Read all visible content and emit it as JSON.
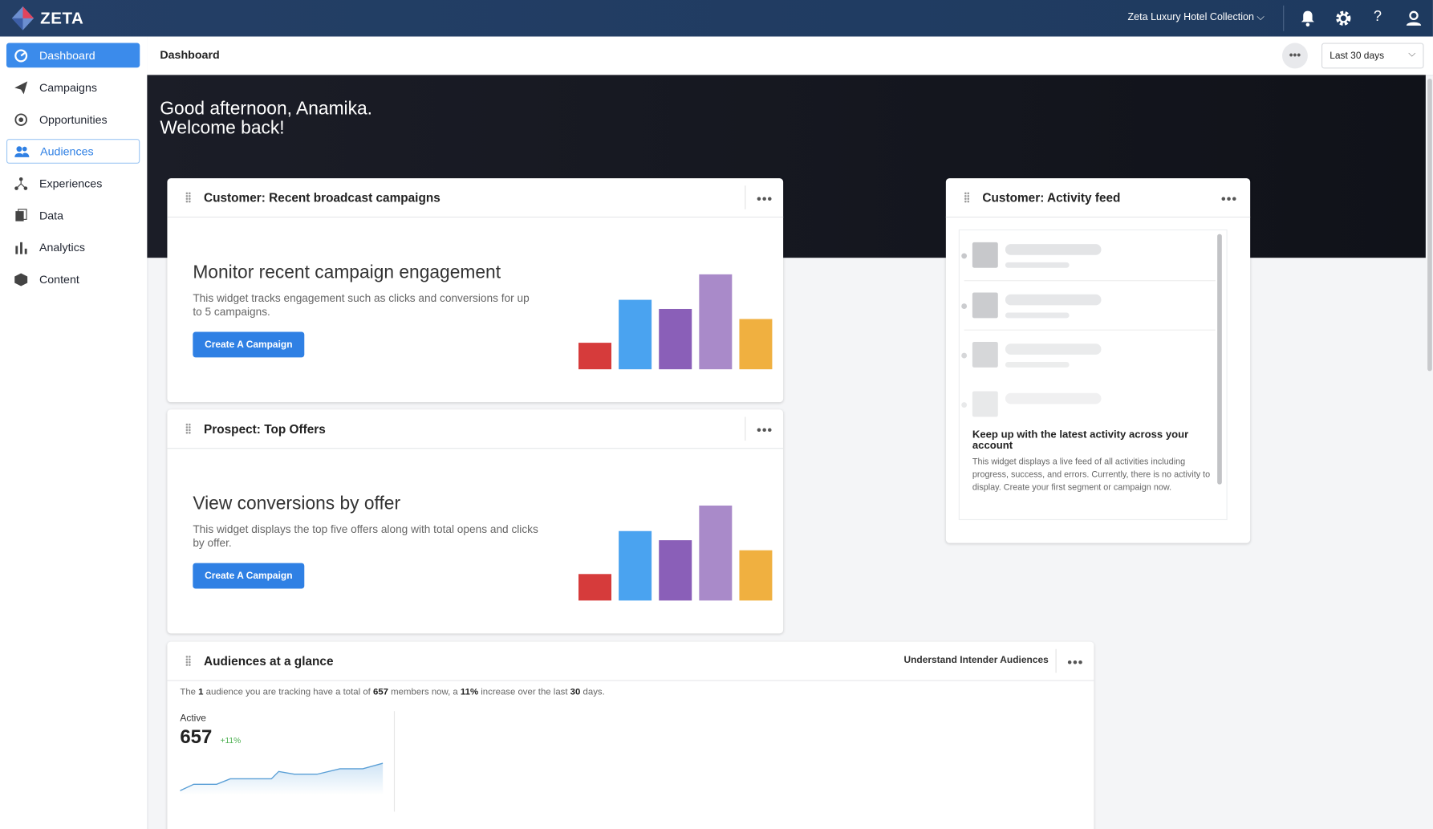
{
  "topbar": {
    "logo": "ZETA",
    "account": "Zeta Luxury Hotel Collection"
  },
  "sidebar": {
    "items": [
      "Dashboard",
      "Campaigns",
      "Opportunities",
      "Audiences",
      "Experiences",
      "Data",
      "Analytics",
      "Content"
    ]
  },
  "header": {
    "title": "Dashboard",
    "range": "Last 30 days"
  },
  "greeting": [
    "Good afternoon, Anamika.",
    "Welcome back!"
  ],
  "widgets": [
    {
      "title": "Customer: Recent broadcast campaigns",
      "heading": "Monitor recent campaign engagement",
      "text": "This widget tracks engagement such as clicks and conversions for up to 5 campaigns.",
      "button": "Create A Campaign"
    },
    {
      "title": "Prospect: Top Offers",
      "heading": "View conversions by offer",
      "text": "This widget displays the top five offers along with total opens and clicks by offer.",
      "button": "Create A Campaign"
    }
  ],
  "activity": {
    "title": "Customer: Activity feed",
    "heading": "Keep up with the latest activity across your account",
    "text": "This widget displays a live feed of all activities including progress, success, and errors. Currently, there is no activity to display. Create your first segment or campaign now."
  },
  "audiences": {
    "title": "Audiences at a glance",
    "link": "Understand Intender Audiences",
    "summary": [
      "The ",
      "1",
      " audience you are tracking have a total of ",
      "657",
      " members now, a ",
      "11%",
      " increase over the last ",
      "30",
      " days."
    ],
    "stat_label": "Active",
    "stat_value": "657",
    "change": "+11%"
  }
}
